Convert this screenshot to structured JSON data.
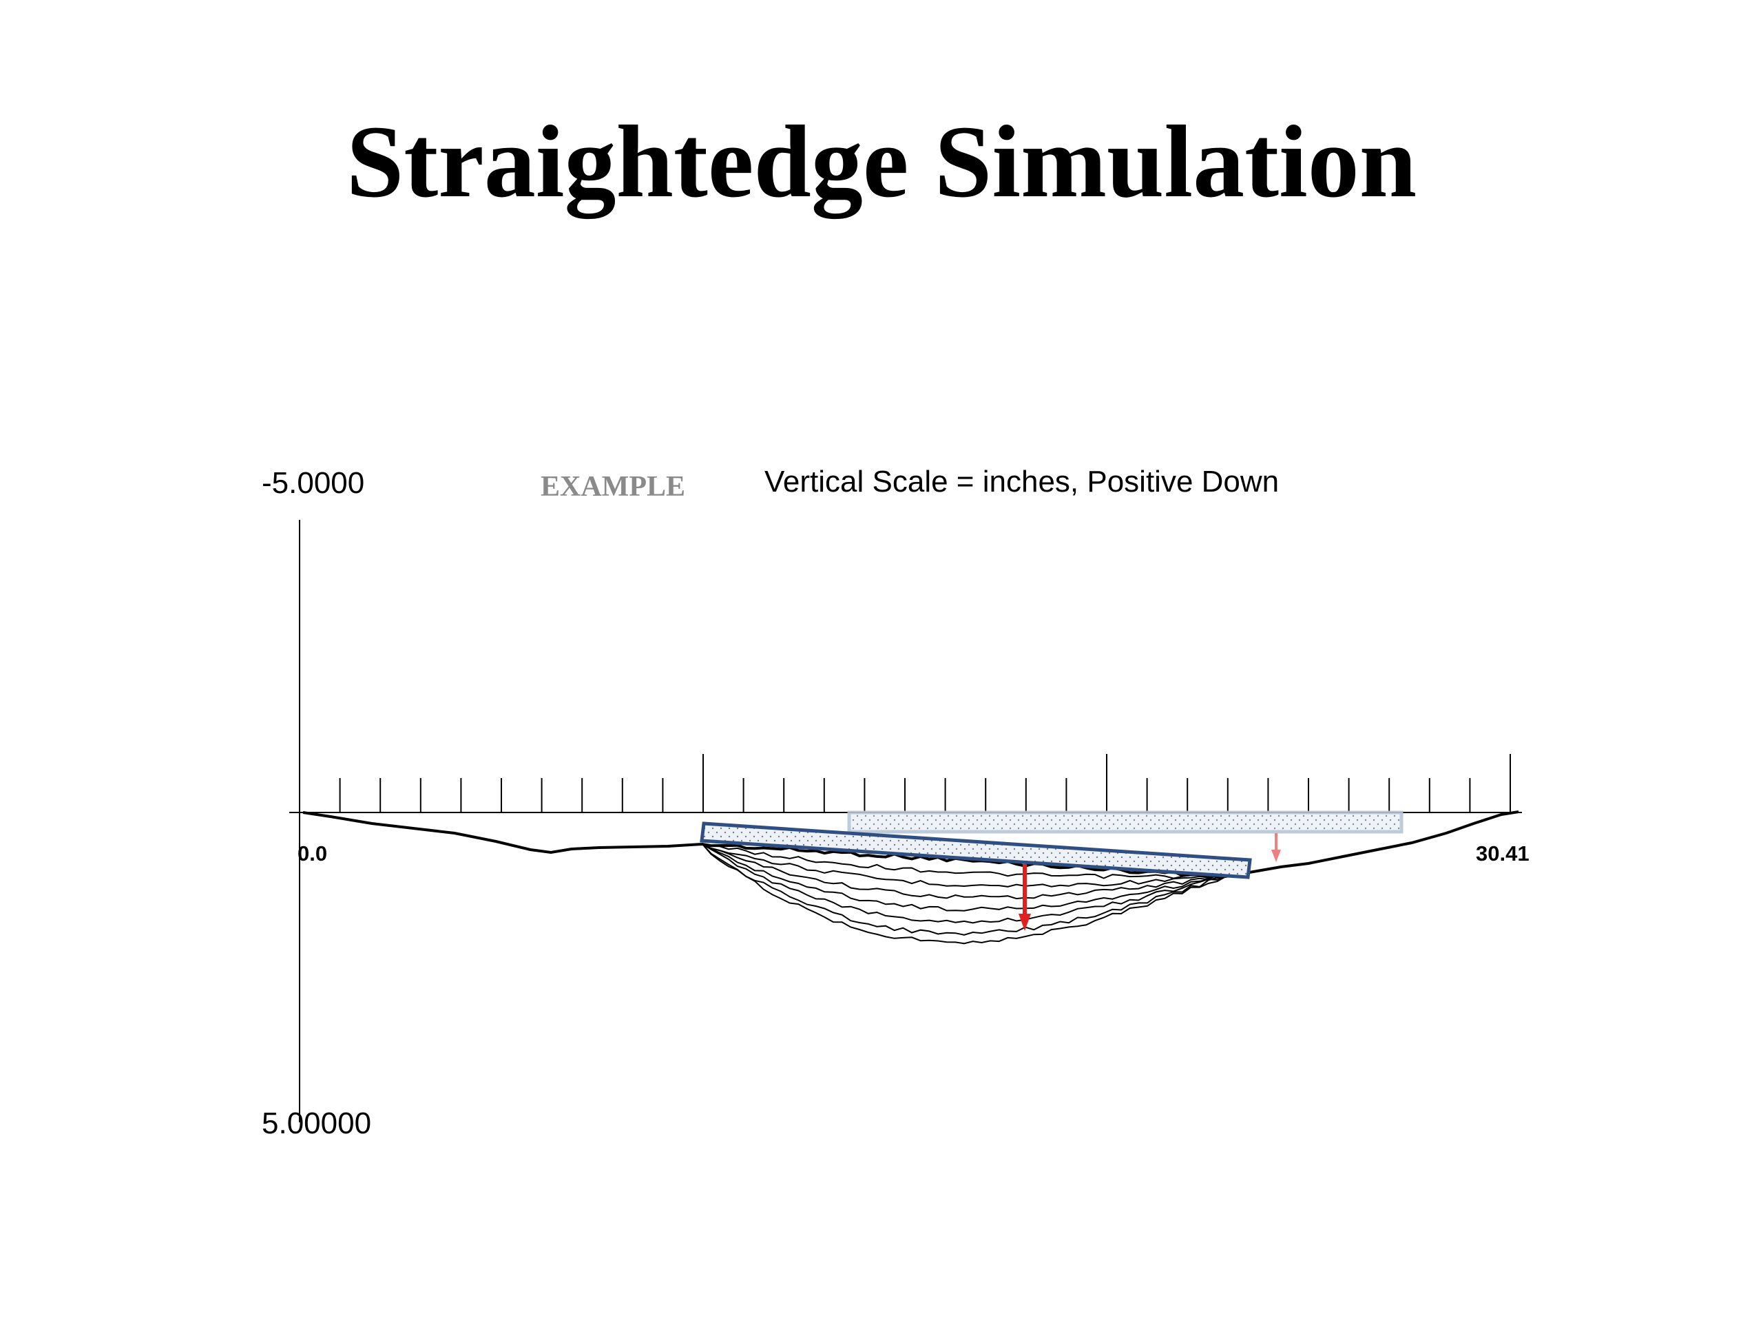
{
  "title": "Straightedge Simulation",
  "y_axis": {
    "top_label": "-5.0000",
    "bottom_label": "5.00000"
  },
  "x_axis": {
    "start_label": "0.0",
    "end_label": "30.41",
    "range": [
      0.0,
      30.41
    ],
    "tick_count": 31
  },
  "example_label": "EXAMPLE",
  "scale_note": "Vertical Scale = inches, Positive Down",
  "colors": {
    "profile": "#000000",
    "straightedge_outline": "#2f4f82",
    "straightedge_light_outline": "#b8c6d8",
    "straightedge_fill": "#eef2f7",
    "deviation_arrow": "#e02020",
    "deviation_arrow_light": "#ee8080",
    "example_text": "#8a8a8a"
  }
}
